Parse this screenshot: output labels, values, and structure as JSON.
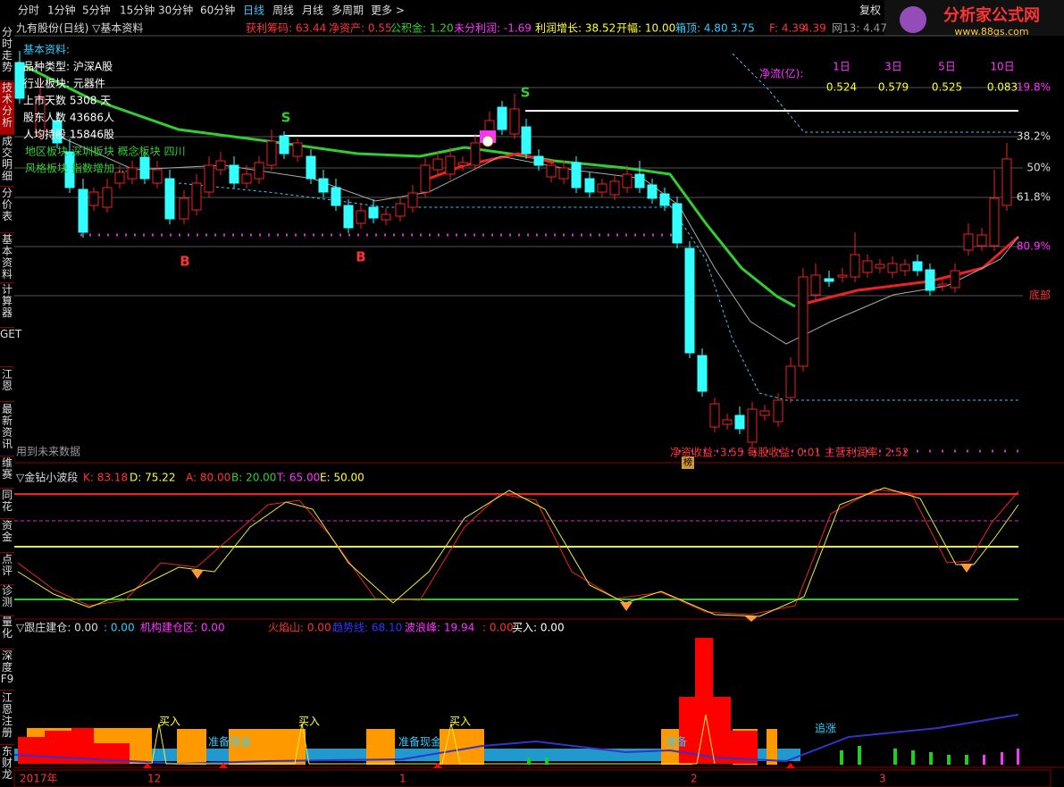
{
  "toolbar": {
    "periods": [
      "分时",
      "1分钟",
      "5分钟",
      "15分钟",
      "30分钟",
      "60分钟",
      "日线",
      "周线",
      "月线",
      "多周期",
      "更多 >"
    ],
    "right": "复权"
  },
  "logo": {
    "name": "分析家公式网",
    "url": "www.88gs.com"
  },
  "sidebar": {
    "tabs": [
      "分时走势",
      "技术分析",
      "成交明细",
      "分价表",
      "基本资料",
      "计算器",
      "GET",
      "江恩",
      "最新资讯",
      "维赛",
      "同花",
      "资金",
      "点评",
      "诊测",
      "量化",
      "深度F9",
      "江恩注册",
      "东财龙"
    ]
  },
  "header": {
    "title": "九有股份(日线) ▽基本资料",
    "items": [
      "获利筹码: 63.44",
      "净资产: 0.55",
      "公积金: 1.20",
      "未分利润: -1.69",
      "利润增长: 38.52",
      "开幅: 10.00",
      "箱顶: 4.80",
      "3.75",
      "F: 4.39",
      "4.39",
      "网13: 4.47"
    ]
  },
  "info": {
    "lines": [
      "基本资料:",
      "品种类型: 沪深A股",
      "行业板块: 元器件",
      "上市天数 5308 天",
      "股东人数 43686人",
      "人均持股 15846股",
      "地区板块 深圳板块 概念板块 四川",
      "风格板块 指数增加 ..."
    ]
  },
  "netflow": {
    "label": "净流(亿):",
    "headers": [
      "1日",
      "3日",
      "5日",
      "10日"
    ],
    "values": [
      "0.524",
      "0.579",
      "0.525",
      "0.083"
    ]
  },
  "levels": [
    "19.8%",
    "38.2%",
    "50%",
    "61.8%",
    "80.9%",
    "底部"
  ],
  "signals": [
    "S",
    "S",
    "B",
    "B"
  ],
  "notes": {
    "future": "用到未来数据",
    "bottom": "净资收益: 3.55  每股收益: 0.01  主营利润率: 2.52",
    "badge": "榜"
  },
  "panel2": {
    "title": "▽金钻小波段",
    "items": [
      "K: 83.18",
      "D: 75.22",
      "A: 80.00",
      "B: 20.00",
      "T: 65.00",
      "E: 50.00"
    ]
  },
  "panel3": {
    "items": [
      "▽跟庄建仓: 0.00",
      ": 0.00",
      "机构建仓区: 0.00",
      "火焰山: 0.00",
      "趋势线: 68.10",
      "波浪峰: 19.94",
      ": 0.00",
      "买入: 0.00"
    ],
    "labels": [
      "买入",
      "买入",
      "买入",
      "准备现金",
      "准备现金",
      "准备",
      "追涨"
    ]
  },
  "timeaxis": [
    "2017年",
    "12",
    "1",
    "2",
    "3"
  ]
}
